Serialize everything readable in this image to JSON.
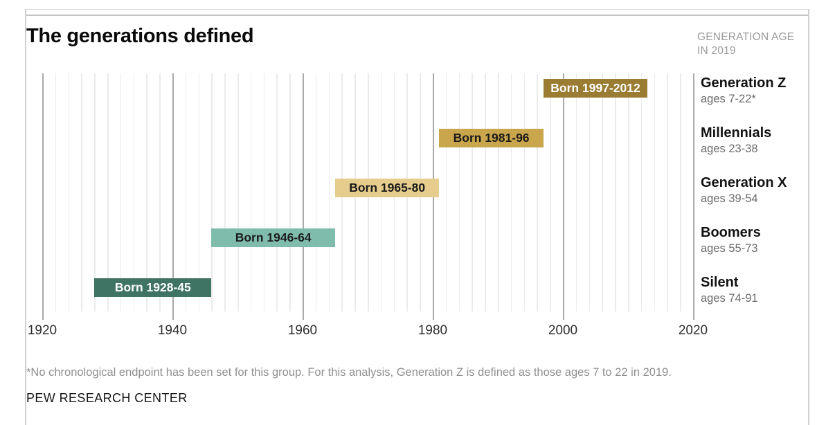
{
  "header": {
    "title": "The generations defined",
    "right_header_line1": "GENERATION AGE",
    "right_header_line2": "IN 2019"
  },
  "chart_data": {
    "type": "bar",
    "subtype": "horizontal-range-timeline",
    "title": "The generations defined",
    "xlabel": "",
    "ylabel": "",
    "x_axis": {
      "min": 1920,
      "max": 2020,
      "major_ticks": [
        1920,
        1940,
        1960,
        1980,
        2000,
        2020
      ],
      "minor_gridline_interval_years": 2,
      "grid": true
    },
    "rows": [
      {
        "name": "Generation Z",
        "ages": "ages 7-22*",
        "bar_label": "Born 1997-2012",
        "start_year": 1997,
        "end_year": 2012,
        "bar_color": "#9a7d32",
        "bar_text_color": "#ffffff"
      },
      {
        "name": "Millennials",
        "ages": "ages 23-38",
        "bar_label": "Born 1981-96",
        "start_year": 1981,
        "end_year": 1996,
        "bar_color": "#c9a54b",
        "bar_text_color": "#1a1a1a"
      },
      {
        "name": "Generation X",
        "ages": "ages 39-54",
        "bar_label": "Born 1965-80",
        "start_year": 1965,
        "end_year": 1980,
        "bar_color": "#e6cd8e",
        "bar_text_color": "#1a1a1a"
      },
      {
        "name": "Boomers",
        "ages": "ages 55-73",
        "bar_label": "Born 1946-64",
        "start_year": 1946,
        "end_year": 1964,
        "bar_color": "#80bcac",
        "bar_text_color": "#1a1a1a"
      },
      {
        "name": "Silent",
        "ages": "ages 74-91",
        "bar_label": "Born 1928-45",
        "start_year": 1928,
        "end_year": 1945,
        "bar_color": "#3f7464",
        "bar_text_color": "#ffffff"
      }
    ],
    "legend": null
  },
  "colors": {
    "minor_gridline": "#ebebeb",
    "major_gridline": "#a9a9a9",
    "axis_label": "#2e2e2e",
    "frame_border": "#cfcfcf"
  },
  "footer": {
    "footnote": "*No chronological endpoint has been set for this group. For this analysis, Generation Z is defined as those ages 7 to 22 in 2019.",
    "source": "PEW RESEARCH CENTER"
  }
}
